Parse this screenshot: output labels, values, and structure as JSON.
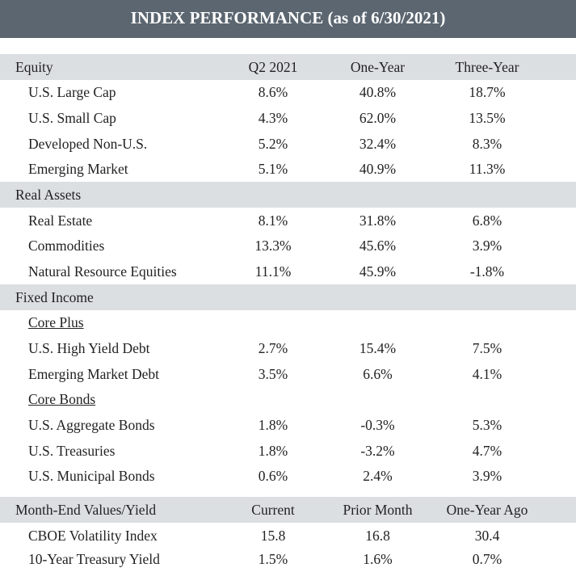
{
  "title": "INDEX PERFORMANCE (as of 6/30/2021)",
  "performance": {
    "sections": [
      {
        "name": "Equity",
        "headers": [
          "Q2 2021",
          "One-Year",
          "Three-Year"
        ],
        "rows": [
          [
            "U.S. Large Cap",
            "8.6%",
            "40.8%",
            "18.7%"
          ],
          [
            "U.S. Small Cap",
            "4.3%",
            "62.0%",
            "13.5%"
          ],
          [
            "Developed Non-U.S.",
            "5.2%",
            "32.4%",
            "8.3%"
          ],
          [
            "Emerging Market",
            "5.1%",
            "40.9%",
            "11.3%"
          ]
        ]
      },
      {
        "name": "Real Assets",
        "rows": [
          [
            "Real Estate",
            "8.1%",
            "31.8%",
            "6.8%"
          ],
          [
            "Commodities",
            "13.3%",
            "45.6%",
            "3.9%"
          ],
          [
            "Natural Resource Equities",
            "11.1%",
            "45.9%",
            "-1.8%"
          ]
        ]
      },
      {
        "name": "Fixed Income",
        "subgroups": [
          {
            "name": "Core Plus",
            "rows": [
              [
                "U.S. High Yield Debt",
                "2.7%",
                "15.4%",
                "7.5%"
              ],
              [
                "Emerging Market Debt",
                "3.5%",
                "6.6%",
                "4.1%"
              ]
            ]
          },
          {
            "name": "Core Bonds",
            "rows": [
              [
                "U.S. Aggregate Bonds",
                "1.8%",
                "-0.3%",
                "5.3%"
              ],
              [
                "U.S. Treasuries",
                "1.8%",
                "-3.2%",
                "4.7%"
              ],
              [
                "U.S. Municipal Bonds",
                "0.6%",
                "2.4%",
                "3.9%"
              ]
            ]
          }
        ]
      }
    ]
  },
  "month_end": {
    "name": "Month-End Values/Yield",
    "headers": [
      "Current",
      "Prior Month",
      "One-Year Ago"
    ],
    "rows": [
      [
        "CBOE Volatility Index",
        "15.8",
        "16.8",
        "30.4"
      ],
      [
        "10-Year Treasury Yield",
        "1.5%",
        "1.6%",
        "0.7%"
      ]
    ]
  }
}
